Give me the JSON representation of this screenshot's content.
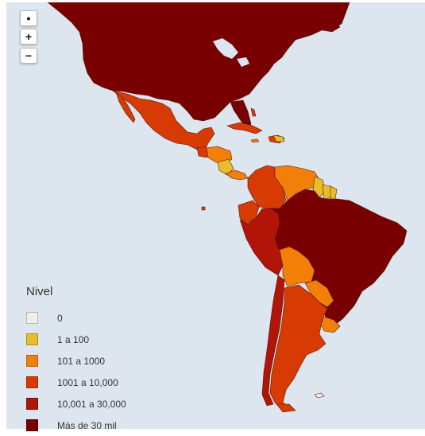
{
  "controls": {
    "reset_symbol": "•",
    "zoom_in_symbol": "+",
    "zoom_out_symbol": "−"
  },
  "legend": {
    "title": "Nivel",
    "items": [
      {
        "label": "0",
        "color": "#f0f0e8"
      },
      {
        "label": "1 a 100",
        "color": "#e8bd2c"
      },
      {
        "label": "101 a 1000",
        "color": "#f28008"
      },
      {
        "label": "1001 a 10,000",
        "color": "#d83a04"
      },
      {
        "label": "10,001 a 30,000",
        "color": "#b21408"
      },
      {
        "label": "Más de 30 mil",
        "color": "#780000"
      }
    ]
  },
  "water_color": "#dde6ee"
}
